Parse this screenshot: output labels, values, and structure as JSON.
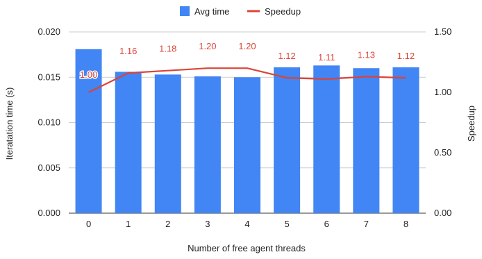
{
  "chart_data": {
    "type": "bar",
    "categories": [
      "0",
      "1",
      "2",
      "3",
      "4",
      "5",
      "6",
      "7",
      "8"
    ],
    "series": [
      {
        "name": "Avg time",
        "type": "bar",
        "axis": "left",
        "color": "#4285f4",
        "values": [
          0.0181,
          0.0156,
          0.0153,
          0.0151,
          0.015,
          0.0161,
          0.0163,
          0.016,
          0.0161
        ]
      },
      {
        "name": "Speedup",
        "type": "line",
        "axis": "right",
        "color": "#db4437",
        "values": [
          1.0,
          1.16,
          1.18,
          1.2,
          1.2,
          1.12,
          1.11,
          1.13,
          1.12
        ],
        "labels": [
          "1.00",
          "1.16",
          "1.18",
          "1.20",
          "1.20",
          "1.12",
          "1.11",
          "1.13",
          "1.12"
        ]
      }
    ],
    "xlabel": "Number of free agent threads",
    "ylabel": "Iteratation time (s)",
    "y2label": "Speedup",
    "ylim": [
      0,
      0.02
    ],
    "y2lim": [
      0,
      1.5
    ],
    "yticks": [
      "0.000",
      "0.005",
      "0.010",
      "0.015",
      "0.020"
    ],
    "y2ticks": [
      "0.00",
      "0.50",
      "1.00",
      "1.50"
    ],
    "grid": true,
    "legend_position": "top-center"
  }
}
